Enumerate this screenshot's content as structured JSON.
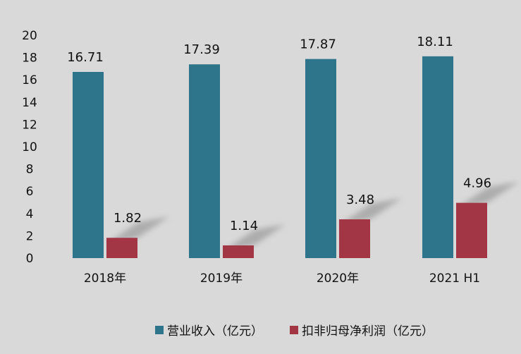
{
  "chart_data": {
    "type": "bar",
    "categories": [
      "2018年",
      "2019年",
      "2020年",
      "2021 H1"
    ],
    "series": [
      {
        "name": "营业收入（亿元）",
        "values": [
          16.71,
          17.39,
          17.87,
          18.11
        ],
        "labels": [
          "16.71",
          "17.39",
          "17.87",
          "18.11"
        ],
        "color": "#2e758c"
      },
      {
        "name": "扣非归母净利润（亿元）",
        "values": [
          1.82,
          1.14,
          3.48,
          4.96
        ],
        "labels": [
          "1.82",
          "1.14",
          "3.48",
          "4.96"
        ],
        "color": "#a23645"
      }
    ],
    "yticks": [
      "0",
      "2",
      "4",
      "6",
      "8",
      "10",
      "12",
      "14",
      "16",
      "18",
      "20"
    ],
    "ylim": [
      0,
      20
    ],
    "grid": false,
    "legend": "bottom",
    "background": "#d9d9d9"
  }
}
